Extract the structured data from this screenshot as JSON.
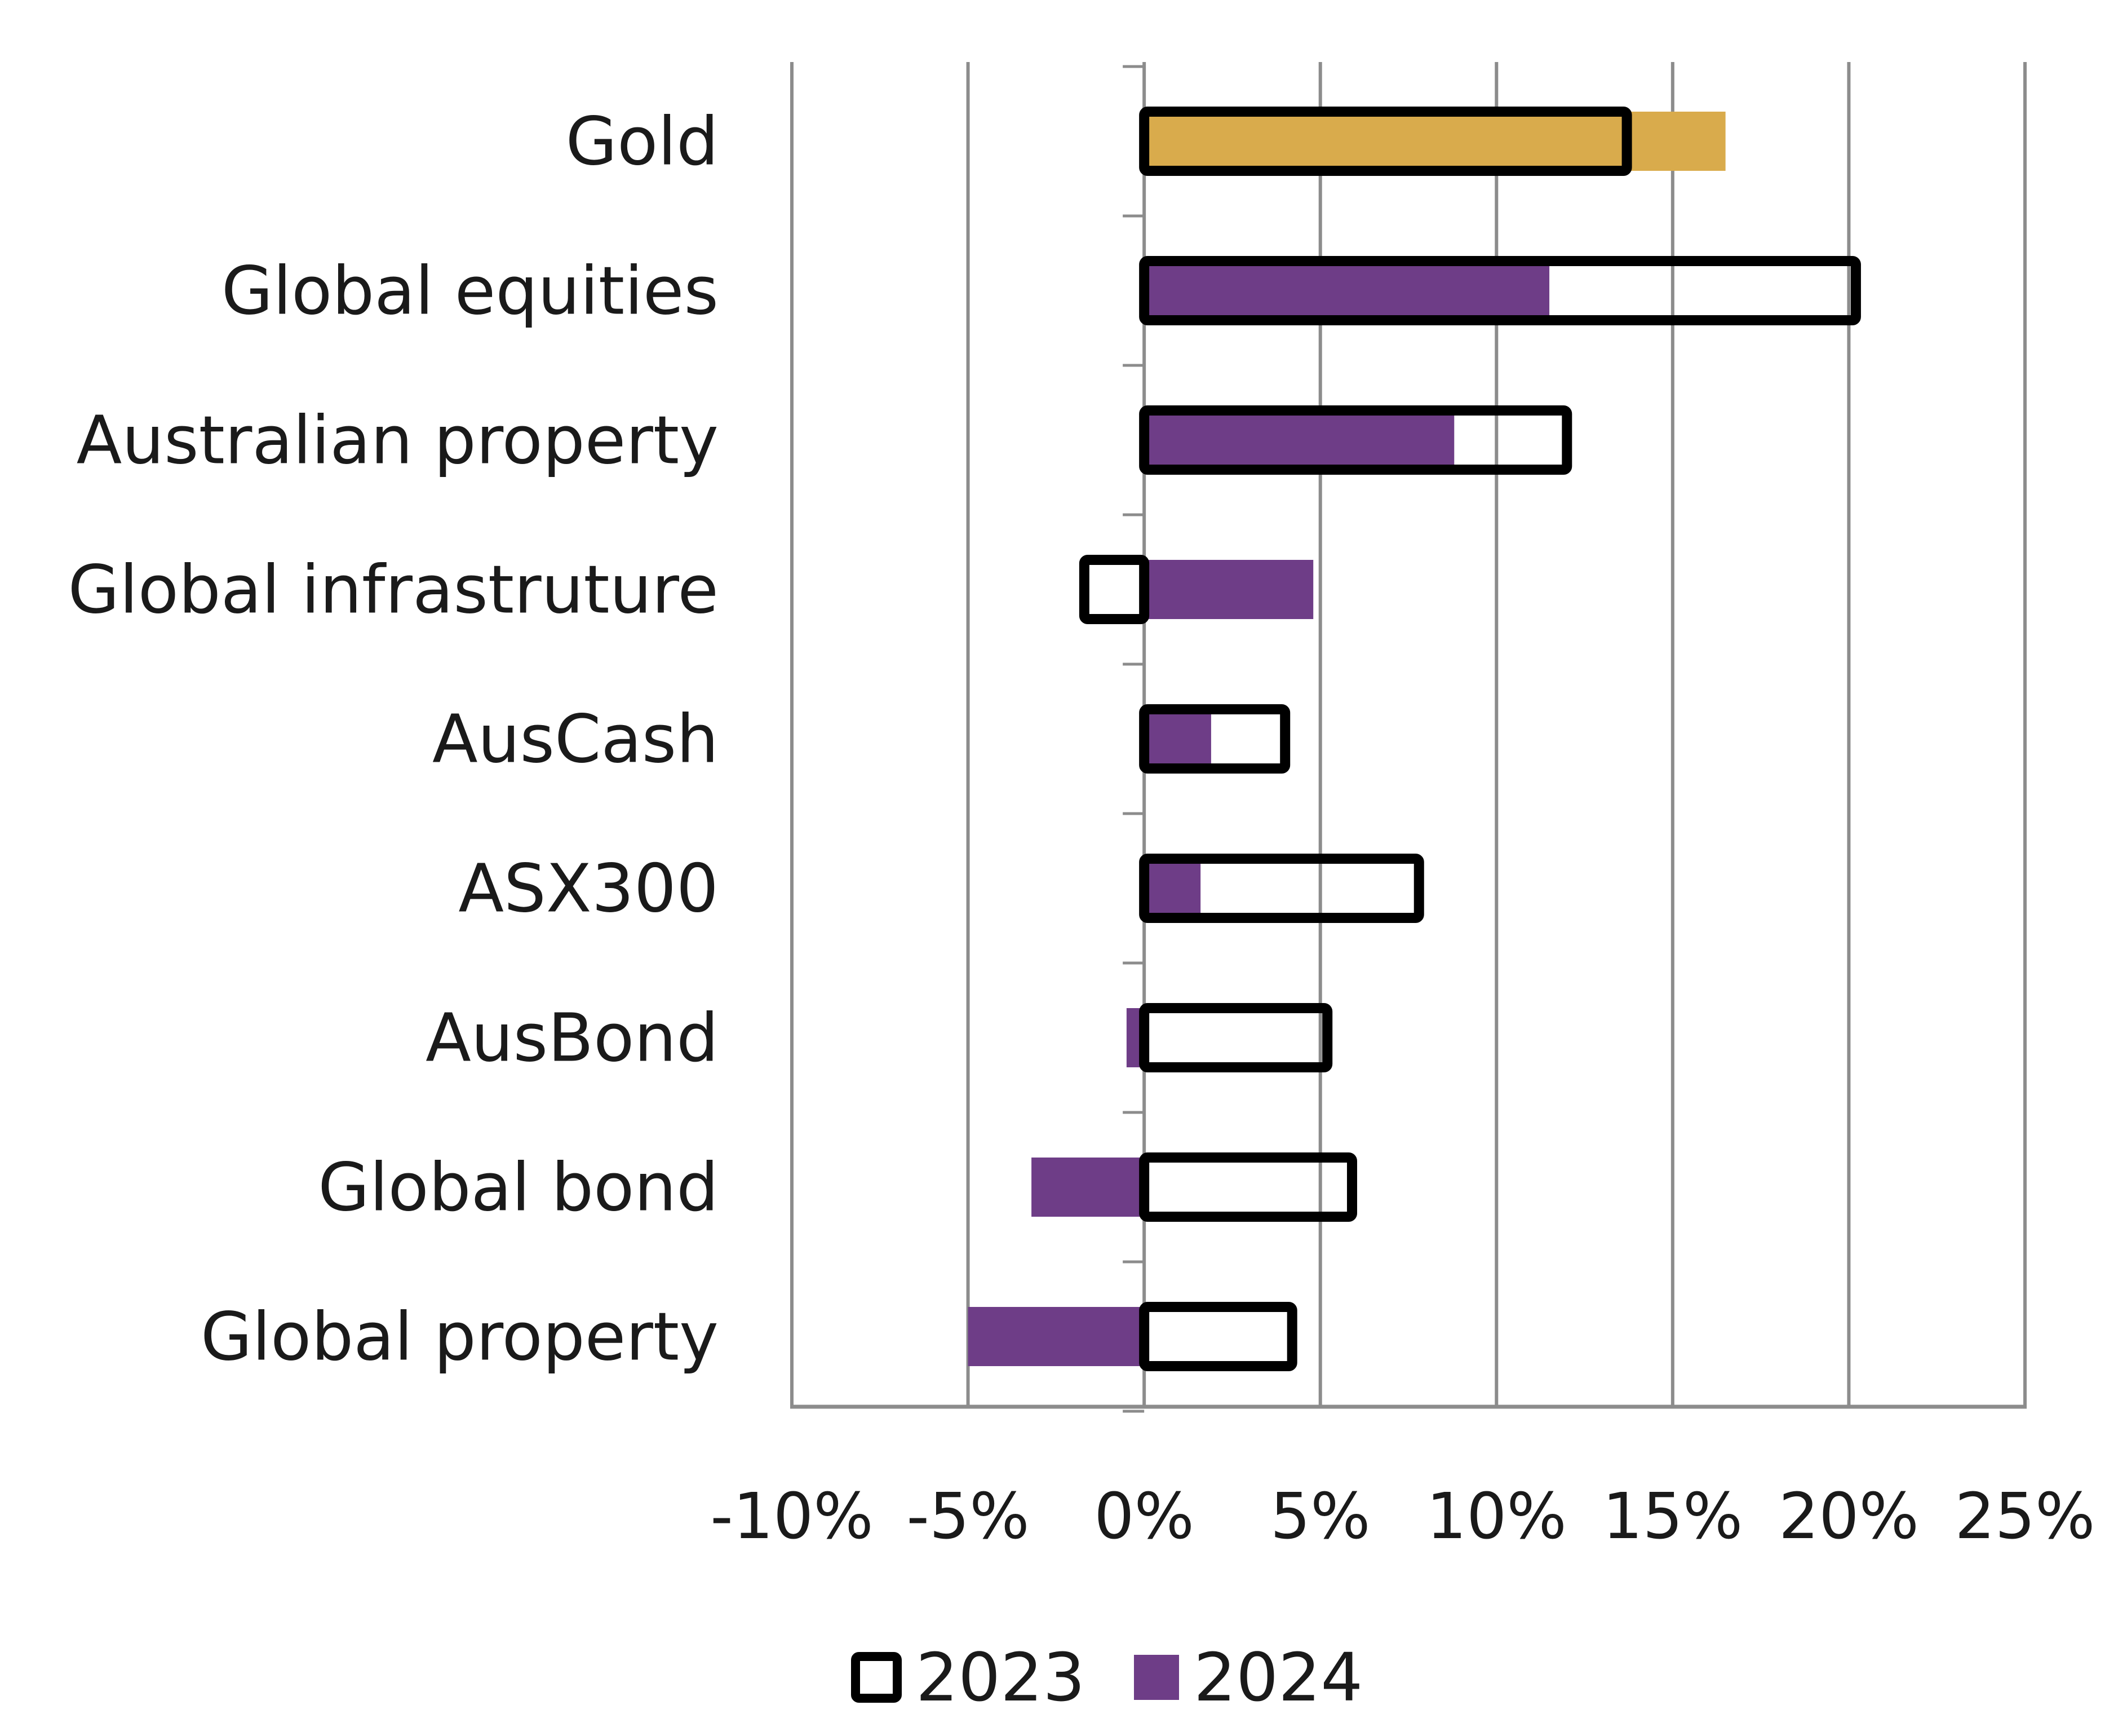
{
  "chart_data": {
    "type": "bar",
    "orientation": "horizontal",
    "categories": [
      "Gold",
      "Global equities",
      "Australian property",
      "Global infrastruture",
      "AusCash",
      "ASX300",
      "AusBond",
      "Global bond",
      "Global property"
    ],
    "series": [
      {
        "name": "2023",
        "style": "outline",
        "values": [
          13.7,
          20.2,
          12.0,
          -1.7,
          4.0,
          7.8,
          5.2,
          5.9,
          4.2
        ]
      },
      {
        "name": "2024",
        "style": "filled",
        "values": [
          16.5,
          11.5,
          8.8,
          4.8,
          1.9,
          1.6,
          -0.5,
          -3.2,
          -5.0
        ]
      }
    ],
    "x_ticks": [
      "-10%",
      "-5%",
      "0%",
      "5%",
      "10%",
      "15%",
      "20%",
      "25%"
    ],
    "xlim": [
      -10,
      25
    ],
    "x_tick_step": 5,
    "grid": "vertical",
    "legend_position": "bottom",
    "colors": {
      "series_2024": "#6e3d87",
      "highlight": "#d9ab4c",
      "outline": "#000000",
      "grid": "#8c8c8c"
    },
    "highlight_category": "Gold"
  }
}
